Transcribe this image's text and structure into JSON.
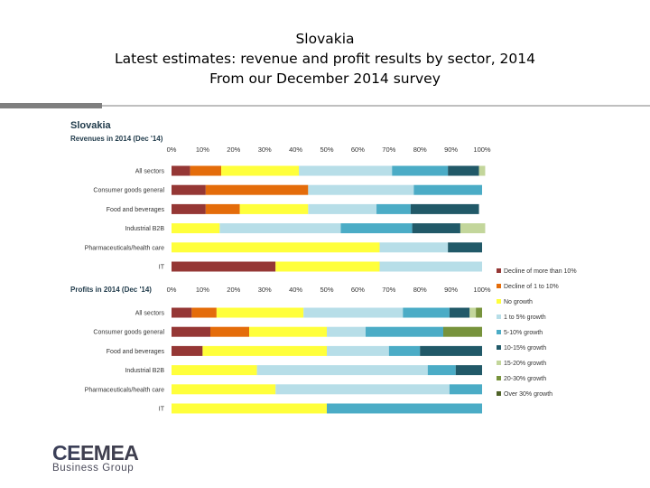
{
  "slide": {
    "title_line1": "Slovakia",
    "title_line2": "Latest estimates: revenue and profit results by sector, 2014",
    "title_line3": "From our December 2014 survey"
  },
  "logo": {
    "name": "CEEMEA",
    "name_part1": "CE",
    "name_part2": "EMEA",
    "subtitle": "Business Group"
  },
  "chart_data": {
    "type": "bar",
    "stacked": true,
    "orientation": "horizontal",
    "title": "Slovakia",
    "x_ticks": [
      "0%",
      "10%",
      "20%",
      "30%",
      "40%",
      "50%",
      "60%",
      "70%",
      "80%",
      "90%",
      "100%"
    ],
    "xlim": [
      0,
      100
    ],
    "legend_position": "right",
    "legend": [
      {
        "label": "Decline of more than 10%",
        "color": "#953735"
      },
      {
        "label": "Decline of 1 to 10%",
        "color": "#e46c0a"
      },
      {
        "label": "No growth",
        "color": "#ffff3b"
      },
      {
        "label": "1 to 5% growth",
        "color": "#b7dee8"
      },
      {
        "label": "5-10% growth",
        "color": "#4bacc6"
      },
      {
        "label": "10-15% growth",
        "color": "#215968"
      },
      {
        "label": "15-20% growth",
        "color": "#c3d69b"
      },
      {
        "label": "20-30% growth",
        "color": "#77933c"
      },
      {
        "label": "Over 30% growth",
        "color": "#4f6228"
      }
    ],
    "panels": [
      {
        "subtitle": "Revenues in 2014 (Dec '14)",
        "categories": [
          "All sectors",
          "Consumer goods general",
          "Food and beverages",
          "Industrial B2B",
          "Pharmaceuticals/health care",
          "IT"
        ],
        "values": [
          [
            6,
            10,
            25,
            30,
            18,
            10,
            2,
            0,
            0
          ],
          [
            11,
            33,
            0,
            34,
            22,
            0,
            0,
            0,
            0
          ],
          [
            11,
            11,
            22,
            22,
            11,
            22,
            0,
            0,
            0
          ],
          [
            0,
            0,
            15.5,
            39,
            23,
            15.5,
            8,
            0,
            0
          ],
          [
            0,
            0,
            67,
            22,
            0,
            11,
            0,
            0,
            0
          ],
          [
            33.5,
            0,
            33.5,
            33,
            0,
            0,
            0,
            0,
            0
          ]
        ]
      },
      {
        "subtitle": "Profits in 2014 (Dec '14)",
        "categories": [
          "All sectors",
          "Consumer goods general",
          "Food and beverages",
          "Industrial B2B",
          "Pharmaceuticals/health care",
          "IT"
        ],
        "values": [
          [
            6.5,
            8,
            28,
            32,
            15,
            6.5,
            2,
            2,
            0
          ],
          [
            12.5,
            12.5,
            25,
            12.5,
            25,
            0,
            0,
            12.5,
            0
          ],
          [
            10,
            0,
            40,
            20,
            10,
            20,
            0,
            0,
            0
          ],
          [
            0,
            0,
            27.5,
            55,
            9,
            8.5,
            0,
            0,
            0
          ],
          [
            0,
            0,
            33.5,
            56,
            10.5,
            0,
            0,
            0,
            0
          ],
          [
            0,
            0,
            50,
            0,
            50,
            0,
            0,
            0,
            0
          ]
        ]
      }
    ]
  }
}
